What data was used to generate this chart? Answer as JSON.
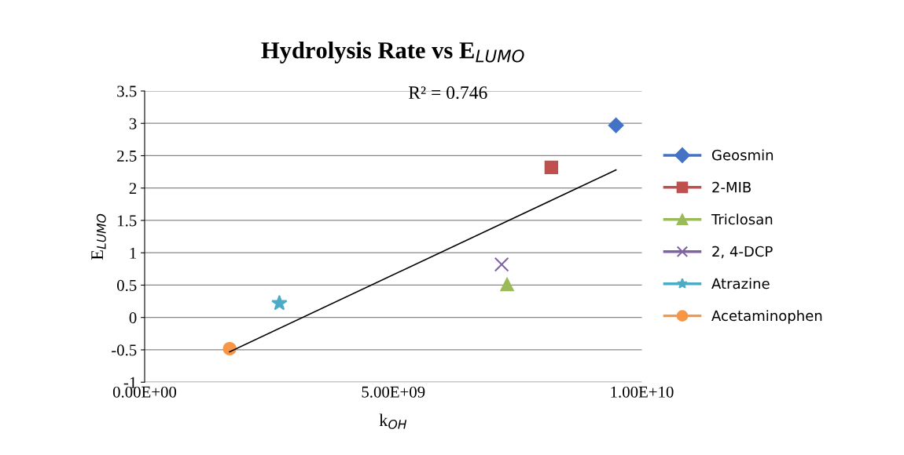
{
  "chart_data": {
    "type": "scatter",
    "title": "Hydrolysis Rate vs E$_{LUMO}$",
    "xlabel": "k$_{OH}$",
    "ylabel": "E$_{LUMO}$",
    "xlim": [
      0,
      10000000000
    ],
    "xticks": [
      {
        "value": 0,
        "label": "0.00E+00"
      },
      {
        "value": 5000000000,
        "label": "5.00E+09"
      },
      {
        "value": 10000000000,
        "label": "1.00E+10"
      }
    ],
    "ylim": [
      -1,
      3.5
    ],
    "yticks": [
      -1,
      -0.5,
      0,
      0.5,
      1,
      1.5,
      2,
      2.5,
      3,
      3.5
    ],
    "grid": "y",
    "legend": "right",
    "annotations": [
      "R² = 0.746"
    ],
    "series": [
      {
        "name": "Geosmin",
        "color": "#4472c4",
        "marker": "diamond",
        "x": [
          9480000000
        ],
        "values": [
          2.97
        ]
      },
      {
        "name": "2-MIB",
        "color": "#c0504d",
        "marker": "square",
        "x": [
          8180000000
        ],
        "values": [
          2.32
        ]
      },
      {
        "name": "Triclosan",
        "color": "#9bbb59",
        "marker": "triangle",
        "x": [
          7290000000
        ],
        "values": [
          0.51
        ]
      },
      {
        "name": "2, 4-DCP",
        "color": "#8064a2",
        "marker": "cross",
        "x": [
          7180000000
        ],
        "values": [
          0.82
        ]
      },
      {
        "name": "Atrazine",
        "color": "#4bacc6",
        "marker": "star",
        "x": [
          2710000000
        ],
        "values": [
          0.22
        ]
      },
      {
        "name": "Acetaminophen",
        "color": "#f79646",
        "marker": "circle",
        "x": [
          1710000000
        ],
        "values": [
          -0.48
        ]
      },
      {
        "type": "line",
        "color": "#000000",
        "marker": "none",
        "x": [
          1710000000,
          9480000000
        ],
        "values": [
          -0.53,
          2.28
        ]
      }
    ]
  }
}
